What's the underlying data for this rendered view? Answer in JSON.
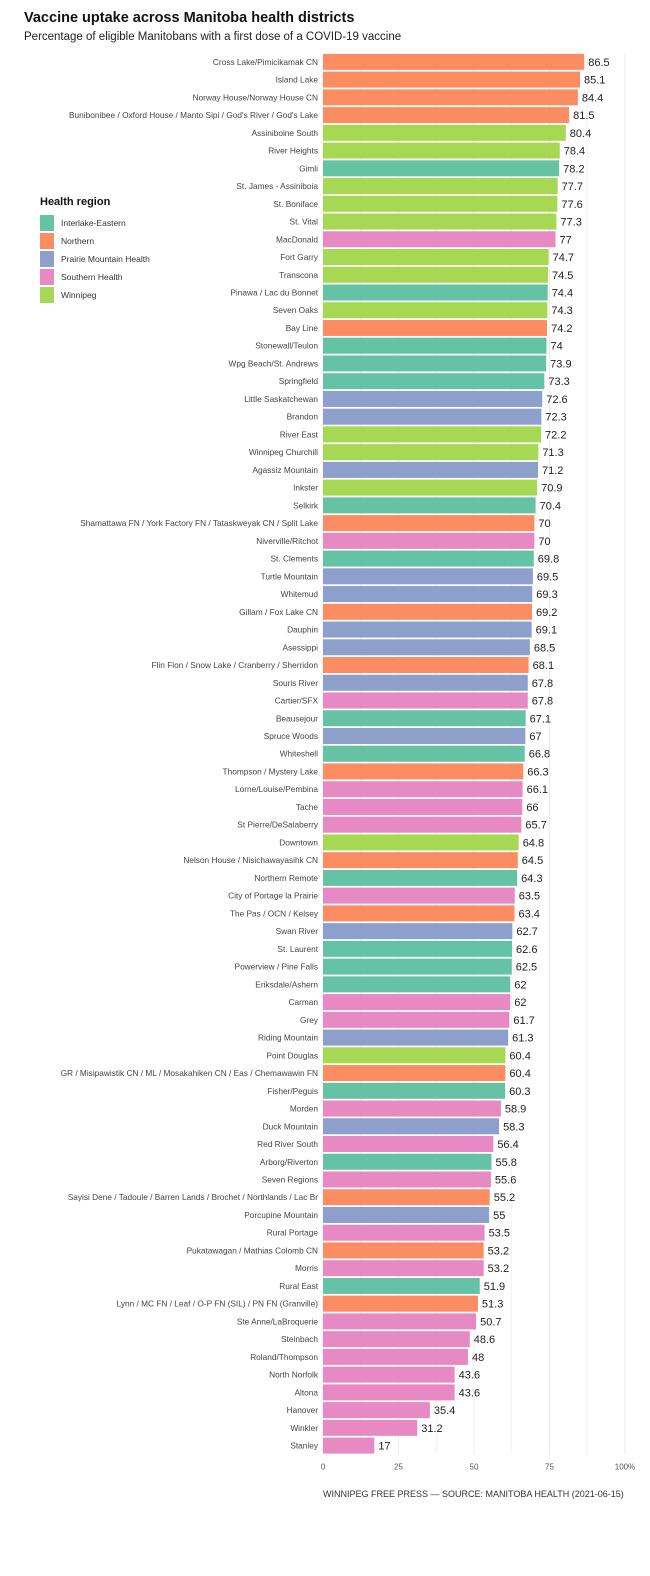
{
  "chart_data": {
    "type": "bar",
    "orientation": "horizontal",
    "title": "Vaccine uptake across Manitoba health districts",
    "subtitle": "Percentage of eligible Manitobans with a first dose of a COVID-19 vaccine",
    "xlim": [
      0,
      100
    ],
    "x_ticks": [
      "0",
      "25",
      "50",
      "75",
      "100%"
    ],
    "grid": true,
    "legend": {
      "title": "Health region",
      "placement": "left",
      "entries": [
        {
          "name": "Interlake-Eastern",
          "color": "#66c2a5"
        },
        {
          "name": "Northern",
          "color": "#fc8d62"
        },
        {
          "name": "Prairie Mountain Health",
          "color": "#8da0cb"
        },
        {
          "name": "Southern Health",
          "color": "#e78ac3"
        },
        {
          "name": "Winnipeg",
          "color": "#a6d854"
        }
      ]
    },
    "categories": [
      "Cross Lake/Pimicikamak CN",
      "Island Lake",
      "Norway House/Norway House CN",
      "Bunibonibee / Oxford House / Manto Sipi / God's River / God's Lake",
      "Assiniboine South",
      "River Heights",
      "Gimli",
      "St. James - Assiniboia",
      "St. Boniface",
      "St. Vital",
      "MacDonald",
      "Fort Garry",
      "Transcona",
      "Pinawa / Lac du Bonnet",
      "Seven Oaks",
      "Bay Line",
      "Stonewall/Teulon",
      "Wpg Beach/St. Andrews",
      "Springfield",
      "Little Saskatchewan",
      "Brandon",
      "River East",
      "Winnipeg Churchill",
      "Agassiz Mountain",
      "Inkster",
      "Selkirk",
      "Shamattawa FN / York Factory FN  / Tataskweyak CN / Split Lake",
      "Niverville/Ritchot",
      "St. Clements",
      "Turtle Mountain",
      "Whitemud",
      "Gillam / Fox Lake CN",
      "Dauphin",
      "Asessippi",
      "Flin Flon / Snow Lake / Cranberry / Sherridon",
      "Souris River",
      "Cartier/SFX",
      "Beausejour",
      "Spruce Woods",
      "Whiteshell",
      "Thompson / Mystery Lake",
      "Lorne/Louise/Pembina",
      "Tache",
      "St Pierre/DeSalaberry",
      "Downtown",
      "Nelson House / Nisichawayasihk CN",
      "Northern Remote",
      "City of Portage la Prairie",
      "The Pas / OCN / Kelsey",
      "Swan River",
      "St. Laurent",
      "Powerview / Pine Falls",
      "Eriksdale/Ashern",
      "Carman",
      "Grey",
      "Riding Mountain",
      "Point Douglas",
      "GR / Misipawistik CN / ML / Mosakahiken CN / Eas / Chemawawin FN",
      "Fisher/Peguis",
      "Morden",
      "Duck Mountain",
      "Red River South",
      "Arborg/Riverton",
      "Seven Regions",
      "Sayisi Dene / Tadoule / Barren Lands / Brochet / Northlands / Lac Br",
      "Porcupine Mountain",
      "Rural Portage",
      "Pukatawagan / Mathias Colomb CN",
      "Morris",
      "Rural East",
      "Lynn / MC FN / Leaf / O-P FN (SIL) / PN FN (Granville)",
      "Ste Anne/LaBroquerie",
      "Steinbach",
      "Roland/Thompson",
      "North Norfolk",
      "Altona",
      "Hanover",
      "Winkler",
      "Stanley"
    ],
    "values": [
      86.5,
      85.1,
      84.4,
      81.5,
      80.4,
      78.4,
      78.2,
      77.7,
      77.6,
      77.3,
      77,
      74.7,
      74.5,
      74.4,
      74.3,
      74.2,
      74,
      73.9,
      73.3,
      72.6,
      72.3,
      72.2,
      71.3,
      71.2,
      70.9,
      70.4,
      70,
      70,
      69.8,
      69.5,
      69.3,
      69.2,
      69.1,
      68.5,
      68.1,
      67.8,
      67.8,
      67.1,
      67,
      66.8,
      66.3,
      66.1,
      66,
      65.7,
      64.8,
      64.5,
      64.3,
      63.5,
      63.4,
      62.7,
      62.6,
      62.5,
      62,
      62,
      61.7,
      61.3,
      60.4,
      60.4,
      60.3,
      58.9,
      58.3,
      56.4,
      55.8,
      55.6,
      55.2,
      55,
      53.5,
      53.2,
      53.2,
      51.9,
      51.3,
      50.7,
      48.6,
      48,
      43.6,
      43.6,
      35.4,
      31.2,
      17
    ],
    "value_labels": [
      "86.5",
      "85.1",
      "84.4",
      "81.5",
      "80.4",
      "78.4",
      "78.2",
      "77.7",
      "77.6",
      "77.3",
      "77",
      "74.7",
      "74.5",
      "74.4",
      "74.3",
      "74.2",
      "74",
      "73.9",
      "73.3",
      "72.6",
      "72.3",
      "72.2",
      "71.3",
      "71.2",
      "70.9",
      "70.4",
      "70",
      "70",
      "69.8",
      "69.5",
      "69.3",
      "69.2",
      "69.1",
      "68.5",
      "68.1",
      "67.8",
      "67.8",
      "67.1",
      "67",
      "66.8",
      "66.3",
      "66.1",
      "66",
      "65.7",
      "64.8",
      "64.5",
      "64.3",
      "63.5",
      "63.4",
      "62.7",
      "62.6",
      "62.5",
      "62",
      "62",
      "61.7",
      "61.3",
      "60.4",
      "60.4",
      "60.3",
      "58.9",
      "58.3",
      "56.4",
      "55.8",
      "55.6",
      "55.2",
      "55",
      "53.5",
      "53.2",
      "53.2",
      "51.9",
      "51.3",
      "50.7",
      "48.6",
      "48",
      "43.6",
      "43.6",
      "35.4",
      "31.2",
      "17"
    ],
    "regions": [
      "Northern",
      "Northern",
      "Northern",
      "Northern",
      "Winnipeg",
      "Winnipeg",
      "Interlake-Eastern",
      "Winnipeg",
      "Winnipeg",
      "Winnipeg",
      "Southern Health",
      "Winnipeg",
      "Winnipeg",
      "Interlake-Eastern",
      "Winnipeg",
      "Northern",
      "Interlake-Eastern",
      "Interlake-Eastern",
      "Interlake-Eastern",
      "Prairie Mountain Health",
      "Prairie Mountain Health",
      "Winnipeg",
      "Winnipeg",
      "Prairie Mountain Health",
      "Winnipeg",
      "Interlake-Eastern",
      "Northern",
      "Southern Health",
      "Interlake-Eastern",
      "Prairie Mountain Health",
      "Prairie Mountain Health",
      "Northern",
      "Prairie Mountain Health",
      "Prairie Mountain Health",
      "Northern",
      "Prairie Mountain Health",
      "Southern Health",
      "Interlake-Eastern",
      "Prairie Mountain Health",
      "Interlake-Eastern",
      "Northern",
      "Southern Health",
      "Southern Health",
      "Southern Health",
      "Winnipeg",
      "Northern",
      "Interlake-Eastern",
      "Southern Health",
      "Northern",
      "Prairie Mountain Health",
      "Interlake-Eastern",
      "Interlake-Eastern",
      "Interlake-Eastern",
      "Southern Health",
      "Southern Health",
      "Prairie Mountain Health",
      "Winnipeg",
      "Northern",
      "Interlake-Eastern",
      "Southern Health",
      "Prairie Mountain Health",
      "Southern Health",
      "Interlake-Eastern",
      "Southern Health",
      "Northern",
      "Prairie Mountain Health",
      "Southern Health",
      "Northern",
      "Southern Health",
      "Interlake-Eastern",
      "Northern",
      "Southern Health",
      "Southern Health",
      "Southern Health",
      "Southern Health",
      "Southern Health",
      "Southern Health",
      "Southern Health",
      "Southern Health"
    ]
  },
  "footer": "WINNIPEG FREE PRESS — SOURCE: MANITOBA HEALTH (2021-06-15)"
}
